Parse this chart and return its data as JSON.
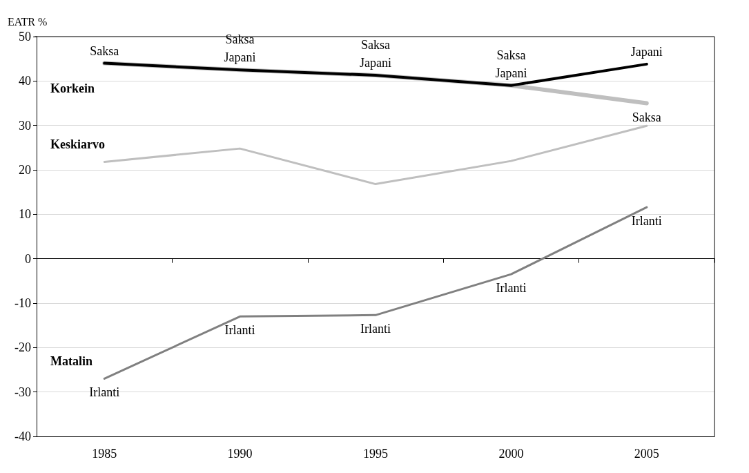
{
  "chart_data": {
    "type": "line",
    "ylabel": "EATR %",
    "categories": [
      "1985",
      "1990",
      "1995",
      "2000",
      "2005"
    ],
    "ylim": [
      -40,
      50
    ],
    "yticks": [
      -40,
      -30,
      -20,
      -10,
      0,
      10,
      20,
      30,
      40,
      50
    ],
    "grid": "y",
    "legend": false,
    "marker": "none",
    "line_style": "solid",
    "series": [
      {
        "color": "#bfbfbf",
        "values": [
          44,
          42.5,
          41.3,
          39,
          35
        ]
      },
      {
        "name": "Korkein",
        "color": "#000000",
        "values": [
          44,
          42.5,
          41.3,
          39,
          43.8
        ]
      },
      {
        "name": "Keskiarvo",
        "color": "#bfbfbf",
        "values": [
          21.8,
          24.8,
          16.8,
          22,
          29.9
        ]
      },
      {
        "name": "Matalin",
        "color": "#808080",
        "values": [
          -27,
          -13,
          -12.7,
          -3.5,
          11.6
        ]
      }
    ],
    "annotations": [
      {
        "text": "Saksa",
        "x": "1985",
        "y": 44
      },
      {
        "text": "Saksa",
        "x": "1990",
        "y": 42.5
      },
      {
        "text": "Japani",
        "x": "1990",
        "y": 42.5
      },
      {
        "text": "Saksa",
        "x": "1995",
        "y": 41.3
      },
      {
        "text": "Japani",
        "x": "1995",
        "y": 41.3
      },
      {
        "text": "Saksa",
        "x": "2000",
        "y": 39
      },
      {
        "text": "Japani",
        "x": "2000",
        "y": 39
      },
      {
        "text": "Japani",
        "x": "2005",
        "y": 43.8
      },
      {
        "text": "Saksa",
        "x": "2005",
        "y": 35
      },
      {
        "text": "Irlanti",
        "x": "1985",
        "y": -27
      },
      {
        "text": "Irlanti",
        "x": "1990",
        "y": -13
      },
      {
        "text": "Irlanti",
        "x": "1995",
        "y": -12.7
      },
      {
        "text": "Irlanti",
        "x": "2000",
        "y": -3.5
      },
      {
        "text": "Irlanti",
        "x": "2005",
        "y": 11.6
      }
    ]
  }
}
